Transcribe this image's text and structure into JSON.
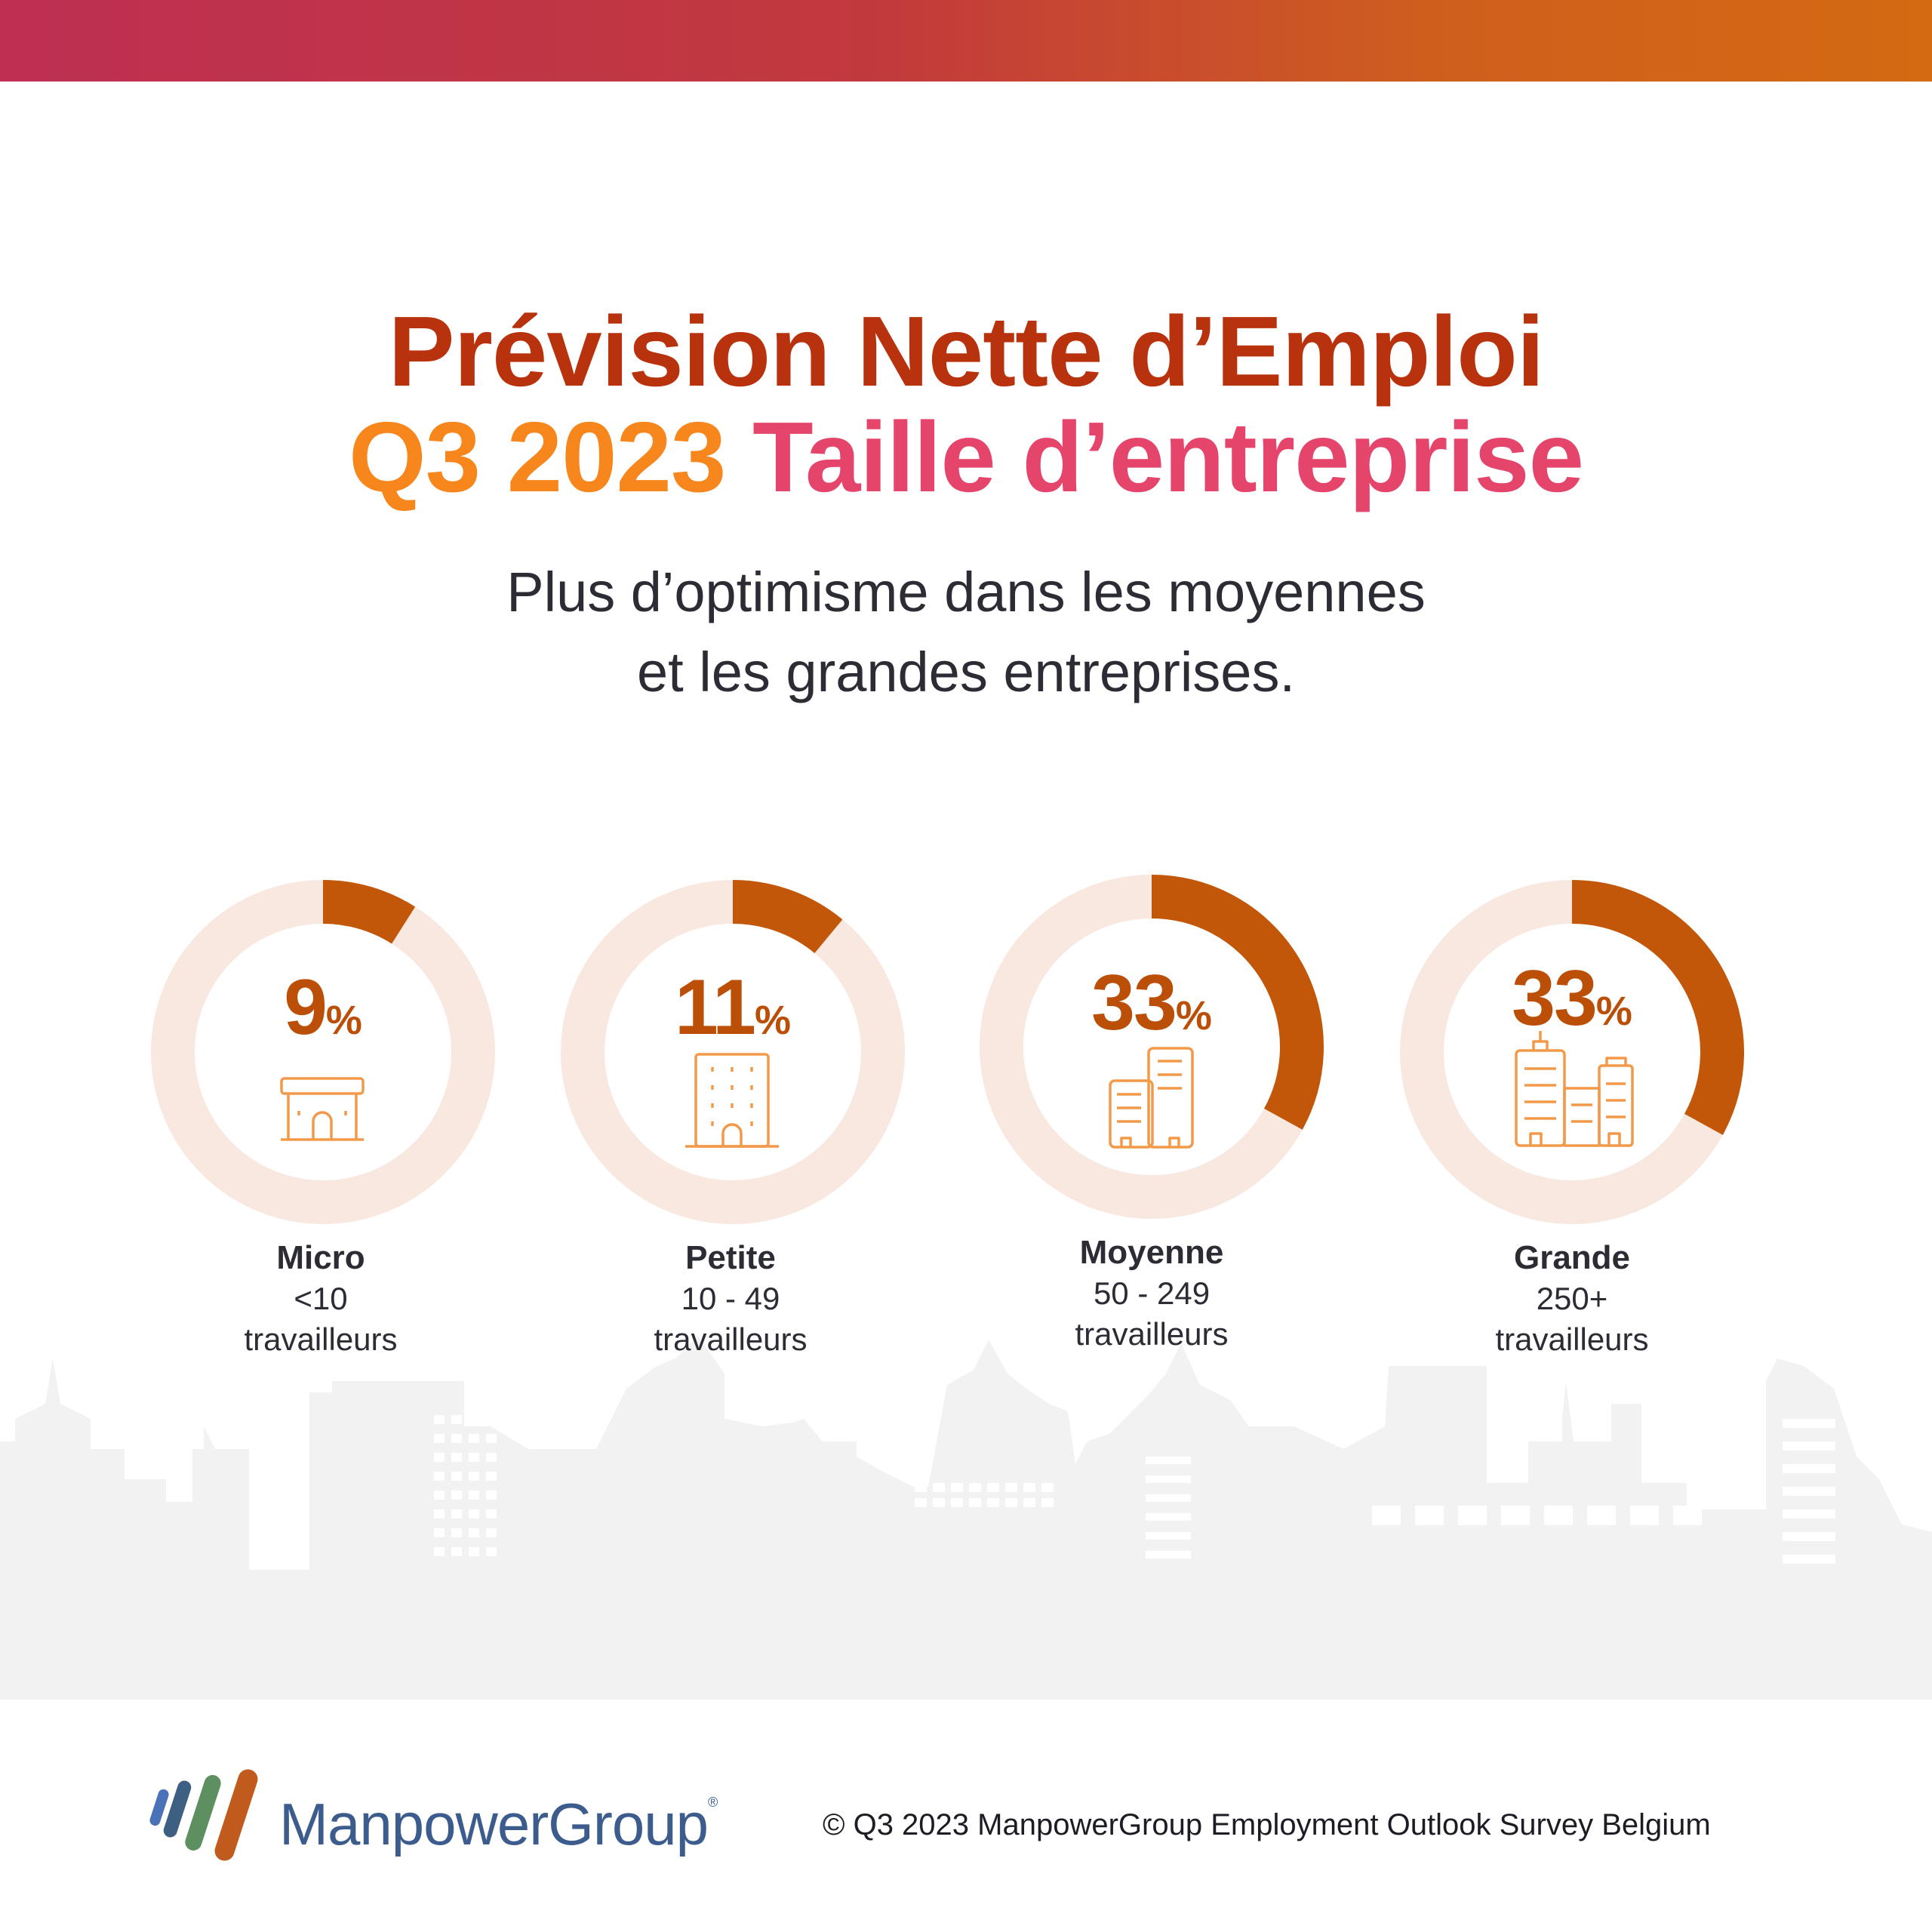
{
  "header": {
    "title_line1": "Prévision Nette d’Emploi",
    "title_period": "Q3 2023",
    "title_topic": "Taille d’entreprise",
    "subtitle_line1": "Plus d’optimisme dans les moyennes",
    "subtitle_line2": "et les grandes entreprises."
  },
  "colors": {
    "value_arc": "#c25609",
    "track": "#f8e8e0",
    "icon": "#f39a4a",
    "title_main": "#b8330d",
    "title_period": "#f7861c",
    "title_topic": "#e5456b"
  },
  "chart_data": {
    "type": "pie",
    "variant": "donut",
    "categories": [
      "Micro",
      "Petite",
      "Moyenne",
      "Grande"
    ],
    "values": [
      9,
      11,
      33,
      33
    ],
    "unit": "%",
    "value_labels": [
      "9",
      "11",
      "33",
      "33"
    ],
    "ranges": [
      "<10",
      "10 - 49",
      "50 - 249",
      "250+"
    ],
    "range_unit": "travailleurs",
    "icons": [
      "small-shop-icon",
      "office-building-icon",
      "twin-towers-icon",
      "city-buildings-icon"
    ]
  },
  "footer": {
    "logo_text": "ManpowerGroup",
    "logo_mark": "®",
    "copyright": "© Q3 2023 ManpowerGroup Employment Outlook Survey Belgium"
  }
}
